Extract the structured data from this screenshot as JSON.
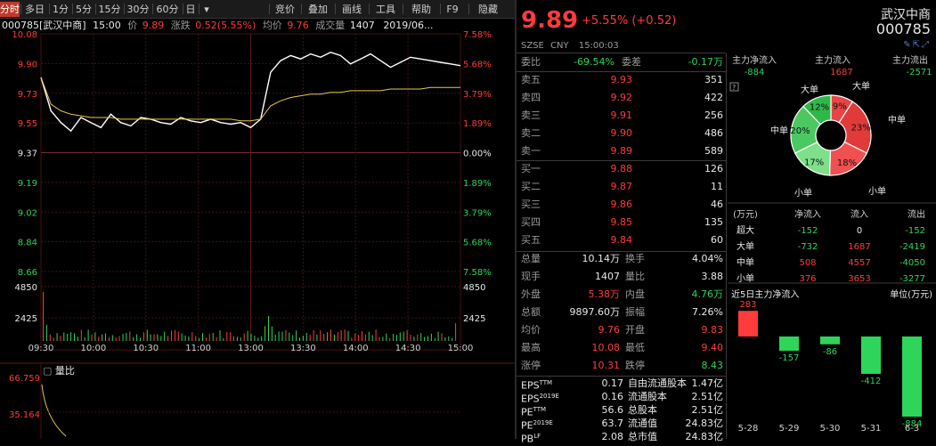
{
  "toolbar": {
    "tabs": [
      "分时",
      "多日",
      "1分",
      "5分",
      "15分",
      "30分",
      "60分",
      "日"
    ],
    "dropdown": "▾",
    "right_tabs": [
      "竞价",
      "叠加",
      "画线",
      "工具",
      "帮助",
      "F9",
      "隐藏"
    ]
  },
  "chart_header": {
    "code_name": "000785[武汉中商]",
    "time": "15:00",
    "price_label": "价",
    "price": "9.89",
    "change_label": "涨跌",
    "change": "0.52(5.55%)",
    "avg_label": "均价",
    "avg": "9.76",
    "volume_label": "成交量",
    "volume": "1407",
    "date": "2019/06..."
  },
  "chart_data": {
    "type": "line",
    "title": "",
    "x_ticks": [
      "09:30",
      "10:00",
      "10:30",
      "11:00",
      "13:00",
      "13:30",
      "14:00",
      "14:30",
      "15:00"
    ],
    "y_left_ticks": [
      "10.08",
      "9.90",
      "9.73",
      "9.55",
      "9.37",
      "9.19",
      "9.02",
      "8.84",
      "8.66"
    ],
    "y_right_ticks": [
      "7.58%",
      "5.68%",
      "3.79%",
      "1.89%",
      "0.00%",
      "1.89%",
      "3.79%",
      "5.68%",
      "7.58%"
    ],
    "ylim": [
      8.66,
      10.08
    ],
    "prev_close": 9.37,
    "volume_ticks_left": [
      "4850",
      "2425"
    ],
    "volume_ticks_right": [
      "4850",
      "2425"
    ],
    "series": [
      {
        "name": "价",
        "values": [
          9.82,
          9.62,
          9.55,
          9.5,
          9.58,
          9.55,
          9.52,
          9.6,
          9.55,
          9.53,
          9.58,
          9.57,
          9.55,
          9.54,
          9.58,
          9.56,
          9.55,
          9.57,
          9.55,
          9.54,
          9.55,
          9.52,
          9.57,
          9.85,
          9.92,
          9.95,
          9.93,
          9.96,
          9.94,
          9.97,
          9.95,
          9.9,
          9.93,
          9.96,
          9.92,
          9.88,
          9.91,
          9.94,
          9.93,
          9.92,
          9.91,
          9.9,
          9.89
        ]
      },
      {
        "name": "均价",
        "values": [
          9.82,
          9.66,
          9.62,
          9.6,
          9.59,
          9.58,
          9.58,
          9.58,
          9.57,
          9.57,
          9.57,
          9.57,
          9.57,
          9.57,
          9.57,
          9.57,
          9.57,
          9.57,
          9.57,
          9.57,
          9.56,
          9.56,
          9.57,
          9.65,
          9.68,
          9.7,
          9.71,
          9.72,
          9.72,
          9.73,
          9.73,
          9.74,
          9.74,
          9.74,
          9.74,
          9.75,
          9.75,
          9.75,
          9.75,
          9.76,
          9.76,
          9.76,
          9.76
        ]
      }
    ]
  },
  "ratio_panel": {
    "label": "量比",
    "ticks": [
      "66.759",
      "35.164"
    ]
  },
  "quote": {
    "price": "9.89",
    "change_pct": "+5.55%",
    "change_abs": "(+0.52)",
    "exchange": "SZSE",
    "currency": "CNY",
    "time": "15:00:03",
    "name": "武汉中商",
    "code": "000785",
    "weibi_label": "委比",
    "weibi": "-69.54%",
    "weicha_label": "委差",
    "weicha": "-0.17万",
    "asks": [
      {
        "label": "卖五",
        "price": "9.93",
        "vol": "351"
      },
      {
        "label": "卖四",
        "price": "9.92",
        "vol": "422"
      },
      {
        "label": "卖三",
        "price": "9.91",
        "vol": "256"
      },
      {
        "label": "卖二",
        "price": "9.90",
        "vol": "486"
      },
      {
        "label": "卖一",
        "price": "9.89",
        "vol": "589"
      }
    ],
    "bids": [
      {
        "label": "买一",
        "price": "9.88",
        "vol": "126"
      },
      {
        "label": "买二",
        "price": "9.87",
        "vol": "11"
      },
      {
        "label": "买三",
        "price": "9.86",
        "vol": "46"
      },
      {
        "label": "买四",
        "price": "9.85",
        "vol": "135"
      },
      {
        "label": "买五",
        "price": "9.84",
        "vol": "60"
      }
    ],
    "stats": [
      {
        "l1": "总量",
        "v1": "10.14万",
        "c1": "white",
        "l2": "换手",
        "v2": "4.04%",
        "c2": "white"
      },
      {
        "l1": "现手",
        "v1": "1407",
        "c1": "white",
        "l2": "量比",
        "v2": "3.88",
        "c2": "white"
      },
      {
        "l1": "外盘",
        "v1": "5.38万",
        "c1": "red",
        "l2": "内盘",
        "v2": "4.76万",
        "c2": "green"
      },
      {
        "l1": "总额",
        "v1": "9897.60万",
        "c1": "white",
        "l2": "振幅",
        "v2": "7.26%",
        "c2": "white"
      },
      {
        "l1": "均价",
        "v1": "9.76",
        "c1": "red",
        "l2": "开盘",
        "v2": "9.83",
        "c2": "red"
      },
      {
        "l1": "最高",
        "v1": "10.08",
        "c1": "red",
        "l2": "最低",
        "v2": "9.40",
        "c2": "red"
      },
      {
        "l1": "涨停",
        "v1": "10.31",
        "c1": "red",
        "l2": "跌停",
        "v2": "8.43",
        "c2": "green"
      }
    ],
    "fin": [
      {
        "l1": "EPS",
        "s1": "TTM",
        "v1": "0.17",
        "l2": "自由流通股本",
        "v2": "1.47亿"
      },
      {
        "l1": "EPS",
        "s1": "2019E",
        "v1": "0.16",
        "l2": "流通股本",
        "v2": "2.51亿"
      },
      {
        "l1": "PE",
        "s1": "TTM",
        "v1": "56.6",
        "l2": "总股本",
        "v2": "2.51亿"
      },
      {
        "l1": "PE",
        "s1": "2019E",
        "v1": "63.7",
        "l2": "流通值",
        "v2": "24.83亿"
      },
      {
        "l1": "PB",
        "s1": "LF",
        "v1": "2.08",
        "l2": "总市值",
        "v2": "24.83亿"
      }
    ]
  },
  "capital": {
    "headers": [
      "主力净流入",
      "主力流入",
      "主力流出"
    ],
    "values": [
      "-884",
      "1687",
      "-2571"
    ],
    "pie_labels": {
      "l_da": "大单",
      "r_da": "大单",
      "l_zhong": "中单",
      "r_zhong": "中单",
      "l_xiao": "小单",
      "r_xiao": "小单"
    },
    "pie": [
      {
        "name": "大单流入",
        "pct": "9%",
        "value": 9,
        "color": "#e03a3a"
      },
      {
        "name": "中单流入",
        "pct": "23%",
        "value": 23,
        "color": "#e03a3a"
      },
      {
        "name": "小单流入",
        "pct": "18%",
        "value": 18,
        "color": "#e03a3a"
      },
      {
        "name": "小单流出",
        "pct": "17%",
        "value": 17,
        "color": "#3cc05a"
      },
      {
        "name": "中单流出",
        "pct": "20%",
        "value": 20,
        "color": "#3cc05a"
      },
      {
        "name": "大单流出",
        "pct": "12%",
        "value": 12,
        "color": "#3cc05a"
      }
    ],
    "table_headers": [
      "(万元)",
      "净流入",
      "流入",
      "流出"
    ],
    "table": [
      {
        "name": "超大",
        "net": "-152",
        "in": "0",
        "out": "-152"
      },
      {
        "name": "大单",
        "net": "-732",
        "in": "1687",
        "out": "-2419"
      },
      {
        "name": "中单",
        "net": "508",
        "in": "4557",
        "out": "-4050"
      },
      {
        "name": "小单",
        "net": "376",
        "in": "3653",
        "out": "-3277"
      }
    ],
    "five_day_title": "近5日主力净流入",
    "five_day_unit": "单位(万元)",
    "five_day": [
      {
        "date": "5-28",
        "value": 283
      },
      {
        "date": "5-29",
        "value": -157
      },
      {
        "date": "5-30",
        "value": -86
      },
      {
        "date": "5-31",
        "value": -412
      },
      {
        "date": "6-3",
        "value": -884
      }
    ]
  }
}
